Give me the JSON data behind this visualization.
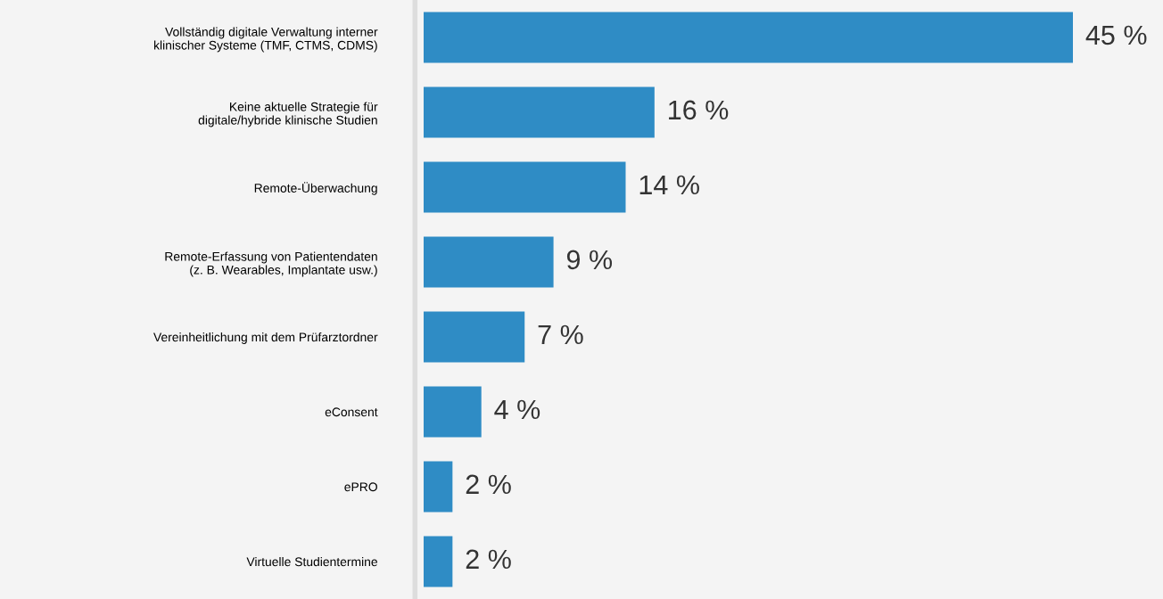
{
  "chart_data": {
    "type": "bar",
    "orientation": "horizontal",
    "categories": [
      "Vollständig digitale Verwaltung interner\nklinischer Systeme (TMF, CTMS, CDMS)",
      "Keine aktuelle Strategie für\ndigitale/hybride klinische Studien",
      "Remote-Überwachung",
      "Remote-Erfassung von Patientendaten\n(z. B. Wearables, Implantate usw.)",
      "Vereinheitlichung mit dem Prüfarztordner",
      "eConsent",
      "ePRO",
      "Virtuelle Studientermine"
    ],
    "values": [
      45,
      16,
      14,
      9,
      7,
      4,
      2,
      2
    ],
    "value_labels": [
      "45 %",
      "16 %",
      "14 %",
      "9 %",
      "7 %",
      "4 %",
      "2 %",
      "2 %"
    ],
    "color": "#2f8cc5",
    "grid": false,
    "legend": false
  }
}
